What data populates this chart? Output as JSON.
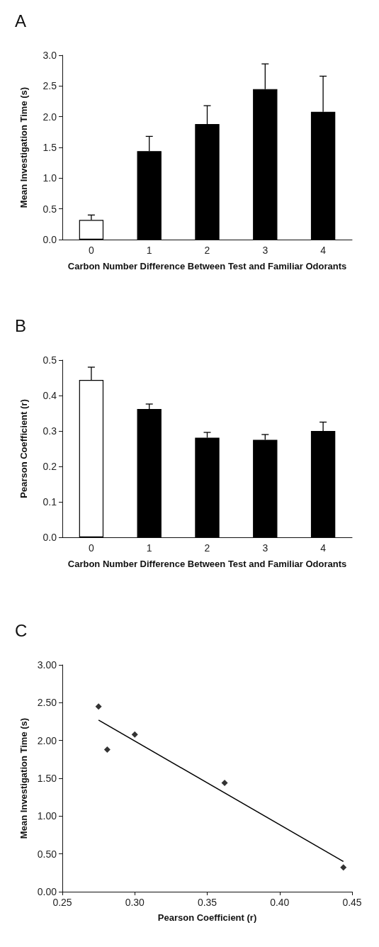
{
  "chart_data": [
    {
      "type": "bar",
      "title": "A",
      "xlabel": "Carbon Number Difference Between Test and Familiar Odorants",
      "ylabel": "Mean Investigation Time (s)",
      "categories": [
        "0",
        "1",
        "2",
        "3",
        "4"
      ],
      "values": [
        0.32,
        1.44,
        1.88,
        2.45,
        2.08
      ],
      "colors": [
        "#ffffff",
        "#000000",
        "#000000",
        "#000000",
        "#000000"
      ],
      "errors": [
        [
          0.32,
          0.4
        ],
        [
          1.44,
          1.68
        ],
        [
          1.88,
          2.18
        ],
        [
          2.45,
          2.86
        ],
        [
          2.08,
          2.66
        ]
      ],
      "ylim": [
        0,
        3
      ],
      "yticks": [
        {
          "value": 0,
          "label": "0.0"
        },
        {
          "value": 0.5,
          "label": "0.5"
        },
        {
          "value": 1,
          "label": "1.0"
        },
        {
          "value": 1.5,
          "label": "1.5"
        },
        {
          "value": 2,
          "label": "2.0"
        },
        {
          "value": 2.5,
          "label": "2.5"
        },
        {
          "value": 3,
          "label": "3.0"
        }
      ]
    },
    {
      "type": "bar",
      "title": "B",
      "xlabel": "Carbon Number Difference Between Test and Familiar Odorants",
      "ylabel": "Pearson Coefficient (r)",
      "categories": [
        "0",
        "1",
        "2",
        "3",
        "4"
      ],
      "values": [
        0.444,
        0.362,
        0.281,
        0.275,
        0.3
      ],
      "colors": [
        "#ffffff",
        "#000000",
        "#000000",
        "#000000",
        "#000000"
      ],
      "errors": [
        [
          0.444,
          0.48
        ],
        [
          0.362,
          0.376
        ],
        [
          0.281,
          0.296
        ],
        [
          0.275,
          0.29
        ],
        [
          0.3,
          0.325
        ]
      ],
      "ylim": [
        0,
        0.5
      ],
      "yticks": [
        {
          "value": 0,
          "label": "0.0"
        },
        0.1,
        0.2,
        0.3,
        0.4,
        0.5
      ]
    },
    {
      "type": "scatter",
      "title": "C",
      "xlabel": "Pearson Coefficient (r)",
      "ylabel": "Mean Investigation Time (s)",
      "marker": "diamond",
      "xlim": [
        0.25,
        0.45
      ],
      "ylim": [
        0,
        3
      ],
      "xticks": [
        0.25,
        {
          "value": 0.3,
          "label": "0.30"
        },
        0.35,
        {
          "value": 0.4,
          "label": "0.40"
        },
        0.45
      ],
      "yticks": [
        {
          "value": 0,
          "label": "0.00"
        },
        {
          "value": 0.5,
          "label": "0.50"
        },
        {
          "value": 1,
          "label": "1.00"
        },
        {
          "value": 1.5,
          "label": "1.50"
        },
        {
          "value": 2,
          "label": "2.00"
        },
        {
          "value": 2.5,
          "label": "2.50"
        },
        {
          "value": 3,
          "label": "3.00"
        }
      ],
      "series": [
        {
          "color": "#000000",
          "x": [
            0.275,
            0.281,
            0.3,
            0.362,
            0.444
          ],
          "values": [
            2.45,
            1.88,
            2.08,
            1.44,
            0.32
          ]
        },
        {
          "type": "line",
          "color": "#000000",
          "marker": "none",
          "line_style": "solid",
          "x": [
            0.275,
            0.444
          ],
          "values": [
            2.27,
            0.4
          ]
        }
      ]
    }
  ]
}
